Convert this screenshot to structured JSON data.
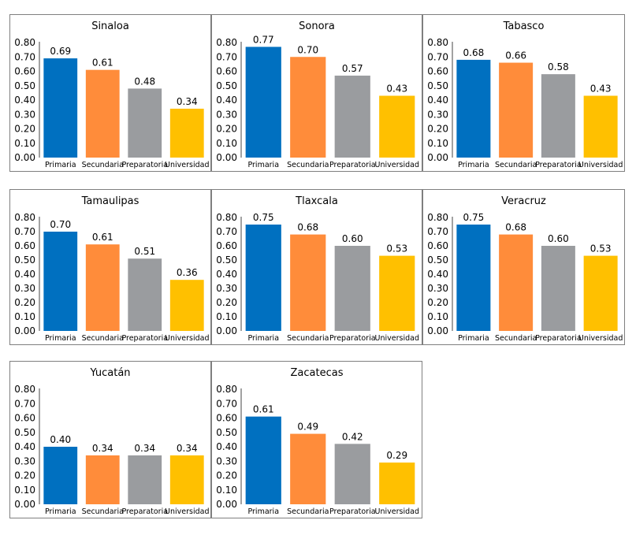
{
  "chart_data": [
    {
      "type": "bar",
      "title": "Sinaloa",
      "categories": [
        "Primaria",
        "Secundaria",
        "Preparatoria",
        "Universidad"
      ],
      "values": [
        0.69,
        0.61,
        0.48,
        0.34
      ],
      "value_labels": [
        "0.69",
        "0.61",
        "0.48",
        "0.34"
      ],
      "ylim": [
        0,
        0.8
      ],
      "yticks": [
        "0.00",
        "0.10",
        "0.20",
        "0.30",
        "0.40",
        "0.50",
        "0.60",
        "0.70",
        "0.80"
      ]
    },
    {
      "type": "bar",
      "title": "Sonora",
      "categories": [
        "Primaria",
        "Secundaria",
        "Preparatoria",
        "Universidad"
      ],
      "values": [
        0.77,
        0.7,
        0.57,
        0.43
      ],
      "value_labels": [
        "0.77",
        "0.70",
        "0.57",
        "0.43"
      ],
      "ylim": [
        0,
        0.8
      ],
      "yticks": [
        "0.00",
        "0.10",
        "0.20",
        "0.30",
        "0.40",
        "0.50",
        "0.60",
        "0.70",
        "0.80"
      ]
    },
    {
      "type": "bar",
      "title": "Tabasco",
      "categories": [
        "Primaria",
        "Secundaria",
        "Preparatoria",
        "Universidad"
      ],
      "values": [
        0.68,
        0.66,
        0.58,
        0.43
      ],
      "value_labels": [
        "0.68",
        "0.66",
        "0.58",
        "0.43"
      ],
      "ylim": [
        0,
        0.8
      ],
      "yticks": [
        "0.00",
        "0.10",
        "0.20",
        "0.30",
        "0.40",
        "0.50",
        "0.60",
        "0.70",
        "0.80"
      ]
    },
    {
      "type": "bar",
      "title": "Tamaulipas",
      "categories": [
        "Primaria",
        "Secundaria",
        "Preparatoria",
        "Universidad"
      ],
      "values": [
        0.7,
        0.61,
        0.51,
        0.36
      ],
      "value_labels": [
        "0.70",
        "0.61",
        "0.51",
        "0.36"
      ],
      "ylim": [
        0,
        0.8
      ],
      "yticks": [
        "0.00",
        "0.10",
        "0.20",
        "0.30",
        "0.40",
        "0.50",
        "0.60",
        "0.70",
        "0.80"
      ]
    },
    {
      "type": "bar",
      "title": "Tlaxcala",
      "categories": [
        "Primaria",
        "Secundaria",
        "Preparatoria",
        "Universidad"
      ],
      "values": [
        0.75,
        0.68,
        0.6,
        0.53
      ],
      "value_labels": [
        "0.75",
        "0.68",
        "0.60",
        "0.53"
      ],
      "ylim": [
        0,
        0.8
      ],
      "yticks": [
        "0.00",
        "0.10",
        "0.20",
        "0.30",
        "0.40",
        "0.50",
        "0.60",
        "0.70",
        "0.80"
      ]
    },
    {
      "type": "bar",
      "title": "Veracruz",
      "categories": [
        "Primaria",
        "Secundaria",
        "Preparatoria",
        "Universidad"
      ],
      "values": [
        0.75,
        0.68,
        0.6,
        0.53
      ],
      "value_labels": [
        "0.75",
        "0.68",
        "0.60",
        "0.53"
      ],
      "ylim": [
        0,
        0.8
      ],
      "yticks": [
        "0.00",
        "0.10",
        "0.20",
        "0.30",
        "0.40",
        "0.50",
        "0.60",
        "0.70",
        "0.80"
      ]
    },
    {
      "type": "bar",
      "title": "Yucatán",
      "categories": [
        "Primaria",
        "Secundaria",
        "Preparatoria",
        "Universidad"
      ],
      "values": [
        0.4,
        0.34,
        0.34,
        0.34
      ],
      "value_labels": [
        "0.40",
        "0.34",
        "0.34",
        "0.34"
      ],
      "ylim": [
        0,
        0.8
      ],
      "yticks": [
        "0.00",
        "0.10",
        "0.20",
        "0.30",
        "0.40",
        "0.50",
        "0.60",
        "0.70",
        "0.80"
      ]
    },
    {
      "type": "bar",
      "title": "Zacatecas",
      "categories": [
        "Primaria",
        "Secundaria",
        "Preparatoria",
        "Universidad"
      ],
      "values": [
        0.61,
        0.49,
        0.42,
        0.29
      ],
      "value_labels": [
        "0.61",
        "0.49",
        "0.42",
        "0.29"
      ],
      "ylim": [
        0,
        0.8
      ],
      "yticks": [
        "0.00",
        "0.10",
        "0.20",
        "0.30",
        "0.40",
        "0.50",
        "0.60",
        "0.70",
        "0.80"
      ]
    }
  ],
  "colors": [
    "#0070c0",
    "#ff8c3a",
    "#9a9c9f",
    "#ffc000"
  ]
}
